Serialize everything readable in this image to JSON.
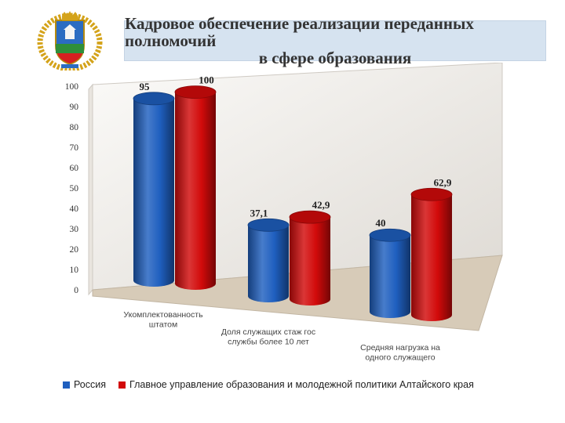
{
  "header": {
    "title_line1": "Кадровое обеспечение реализации переданных полномочий",
    "title_line2": "в сфере образования",
    "emblem_icon": "altai-krai-coat-of-arms-icon"
  },
  "chart_data": {
    "type": "bar",
    "style": "3d-cylinder",
    "categories": [
      [
        "Укомплектованность",
        "штатом"
      ],
      [
        "Доля служащих стаж гос",
        "службы более 10 лет"
      ],
      [
        "Средняя нагрузка на",
        "одного служащего"
      ]
    ],
    "series": [
      {
        "name": "Россия",
        "values": [
          95,
          37.1,
          40
        ],
        "labels": [
          "95",
          "37,1",
          "40"
        ],
        "color": "#1f5fbf"
      },
      {
        "name": "Главное управление образования и молодежной политики Алтайского края",
        "values": [
          100,
          42.9,
          62.9
        ],
        "labels": [
          "100",
          "42,9",
          "62,9"
        ],
        "color": "#d20a0a"
      }
    ],
    "yticks": [
      "0",
      "10",
      "20",
      "30",
      "40",
      "50",
      "60",
      "70",
      "80",
      "90",
      "100"
    ],
    "ylim": [
      0,
      100
    ],
    "legend_position": "bottom",
    "grid": false
  }
}
